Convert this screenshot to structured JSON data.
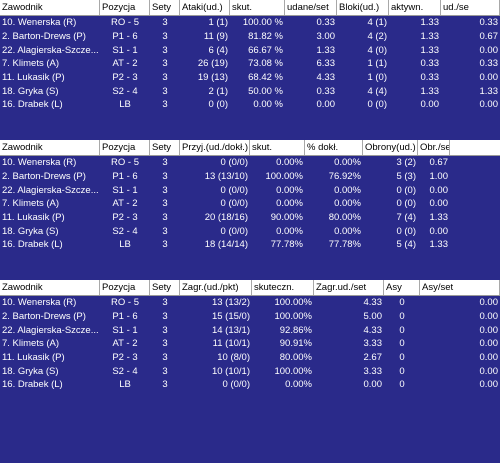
{
  "tables": [
    {
      "headers": [
        "Zawodnik",
        "Pozycja",
        "Sety",
        "Ataki(ud.)",
        "skut.",
        "udane/set",
        "Bloki(ud.)",
        "aktywn.",
        "ud./se"
      ],
      "rows": [
        [
          "10. Wenerska (R)",
          "RO - 5",
          "3",
          "1 (1)",
          "100.00 %",
          "0.33",
          "4 (1)",
          "1.33",
          "0.33"
        ],
        [
          "2. Barton-Drews (P)",
          "P1 - 6",
          "3",
          "11 (9)",
          "81.82 %",
          "3.00",
          "4 (2)",
          "1.33",
          "0.67"
        ],
        [
          "22. Alagierska-Szcze...",
          "S1 - 1",
          "3",
          "6 (4)",
          "66.67 %",
          "1.33",
          "4 (0)",
          "1.33",
          "0.00"
        ],
        [
          "7. Klimets (A)",
          "AT - 2",
          "3",
          "26 (19)",
          "73.08 %",
          "6.33",
          "1 (1)",
          "0.33",
          "0.33"
        ],
        [
          "11. Lukasik (P)",
          "P2 - 3",
          "3",
          "19 (13)",
          "68.42 %",
          "4.33",
          "1 (0)",
          "0.33",
          "0.00"
        ],
        [
          "18. Gryka (S)",
          "S2 - 4",
          "3",
          "2 (1)",
          "50.00 %",
          "0.33",
          "4 (4)",
          "1.33",
          "1.33"
        ],
        [
          "16. Drabek (L)",
          "LB",
          "3",
          "0 (0)",
          "0.00 %",
          "0.00",
          "0 (0)",
          "0.00",
          "0.00"
        ]
      ]
    },
    {
      "headers": [
        "Zawodnik",
        "Pozycja",
        "Sety",
        "Przyj.(ud./dokł.)",
        "skut.",
        "% dokł.",
        "Obrony(ud.)",
        "Obr./se"
      ],
      "rows": [
        [
          "10. Wenerska (R)",
          "RO - 5",
          "3",
          "0 (0/0)",
          "0.00%",
          "0.00%",
          "3 (2)",
          "0.67"
        ],
        [
          "2. Barton-Drews (P)",
          "P1 - 6",
          "3",
          "13 (13/10)",
          "100.00%",
          "76.92%",
          "5 (3)",
          "1.00"
        ],
        [
          "22. Alagierska-Szcze...",
          "S1 - 1",
          "3",
          "0 (0/0)",
          "0.00%",
          "0.00%",
          "0 (0)",
          "0.00"
        ],
        [
          "7. Klimets (A)",
          "AT - 2",
          "3",
          "0 (0/0)",
          "0.00%",
          "0.00%",
          "0 (0)",
          "0.00"
        ],
        [
          "11. Lukasik (P)",
          "P2 - 3",
          "3",
          "20 (18/16)",
          "90.00%",
          "80.00%",
          "7 (4)",
          "1.33"
        ],
        [
          "18. Gryka (S)",
          "S2 - 4",
          "3",
          "0 (0/0)",
          "0.00%",
          "0.00%",
          "0 (0)",
          "0.00"
        ],
        [
          "16. Drabek (L)",
          "LB",
          "3",
          "18 (14/14)",
          "77.78%",
          "77.78%",
          "5 (4)",
          "1.33"
        ]
      ]
    },
    {
      "headers": [
        "Zawodnik",
        "Pozycja",
        "Sety",
        "Zagr.(ud./pkt)",
        "skuteczn.",
        "Zagr.ud./set",
        "Asy",
        "Asy/set"
      ],
      "rows": [
        [
          "10. Wenerska (R)",
          "RO - 5",
          "3",
          "13 (13/2)",
          "100.00%",
          "4.33",
          "0",
          "0.00"
        ],
        [
          "2. Barton-Drews (P)",
          "P1 - 6",
          "3",
          "15 (15/0)",
          "100.00%",
          "5.00",
          "0",
          "0.00"
        ],
        [
          "22. Alagierska-Szcze...",
          "S1 - 1",
          "3",
          "14 (13/1)",
          "92.86%",
          "4.33",
          "0",
          "0.00"
        ],
        [
          "7. Klimets (A)",
          "AT - 2",
          "3",
          "11 (10/1)",
          "90.91%",
          "3.33",
          "0",
          "0.00"
        ],
        [
          "11. Lukasik (P)",
          "P2 - 3",
          "3",
          "10 (8/0)",
          "80.00%",
          "2.67",
          "0",
          "0.00"
        ],
        [
          "18. Gryka (S)",
          "S2 - 4",
          "3",
          "10 (10/1)",
          "100.00%",
          "3.33",
          "0",
          "0.00"
        ],
        [
          "16. Drabek (L)",
          "LB",
          "3",
          "0 (0/0)",
          "0.00%",
          "0.00",
          "0",
          "0.00"
        ]
      ]
    }
  ]
}
